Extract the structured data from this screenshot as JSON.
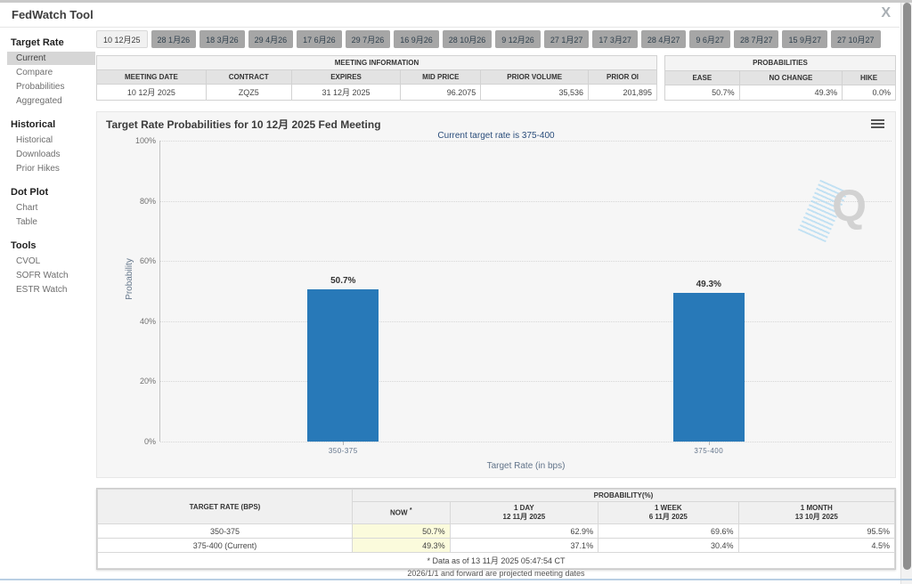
{
  "header": {
    "title": "FedWatch Tool",
    "close_glyph": "X"
  },
  "sidebar": {
    "sections": [
      {
        "title": "Target Rate",
        "items": [
          {
            "label": "Current",
            "selected": true
          },
          {
            "label": "Compare"
          },
          {
            "label": "Probabilities"
          },
          {
            "label": "Aggregated"
          }
        ]
      },
      {
        "title": "Historical",
        "items": [
          {
            "label": "Historical"
          },
          {
            "label": "Downloads"
          },
          {
            "label": "Prior Hikes"
          }
        ]
      },
      {
        "title": "Dot Plot",
        "items": [
          {
            "label": "Chart"
          },
          {
            "label": "Table"
          }
        ]
      },
      {
        "title": "Tools",
        "items": [
          {
            "label": "CVOL"
          },
          {
            "label": "SOFR Watch"
          },
          {
            "label": "ESTR Watch"
          }
        ]
      }
    ]
  },
  "tabs": [
    {
      "label": "10 12月25",
      "selected": true
    },
    {
      "label": "28 1月26"
    },
    {
      "label": "18 3月26"
    },
    {
      "label": "29 4月26"
    },
    {
      "label": "17 6月26"
    },
    {
      "label": "29 7月26"
    },
    {
      "label": "16 9月26"
    },
    {
      "label": "28 10月26"
    },
    {
      "label": "9 12月26"
    },
    {
      "label": "27 1月27"
    },
    {
      "label": "17 3月27"
    },
    {
      "label": "28 4月27"
    },
    {
      "label": "9 6月27"
    },
    {
      "label": "28 7月27"
    },
    {
      "label": "15 9月27"
    },
    {
      "label": "27 10月27"
    }
  ],
  "meeting_info": {
    "group_header": "MEETING INFORMATION",
    "columns": [
      "MEETING DATE",
      "CONTRACT",
      "EXPIRES",
      "MID PRICE",
      "PRIOR VOLUME",
      "PRIOR OI"
    ],
    "values": [
      "10 12月 2025",
      "ZQZ5",
      "31 12月 2025",
      "96.2075",
      "35,536",
      "201,895"
    ]
  },
  "probabilities_info": {
    "group_header": "PROBABILITIES",
    "columns": [
      "EASE",
      "NO CHANGE",
      "HIKE"
    ],
    "values": [
      "50.7%",
      "49.3%",
      "0.0%"
    ]
  },
  "chart_data": {
    "type": "bar",
    "title": "Target Rate Probabilities for 10 12月 2025 Fed Meeting",
    "subtitle": "Current target rate is 375-400",
    "categories": [
      "350-375",
      "375-400"
    ],
    "values": [
      50.7,
      49.3
    ],
    "value_labels": [
      "50.7%",
      "49.3%"
    ],
    "xlabel": "Target Rate (in bps)",
    "ylabel": "Probability",
    "ylim": [
      0,
      100
    ],
    "ytick_labels": [
      "100%",
      "80%",
      "60%",
      "40%",
      "20%",
      "0%"
    ],
    "grid": "dotted horizontal",
    "legend": "none",
    "bar_color": "#2879b8",
    "watermark": "Q"
  },
  "bottom_table": {
    "row_header": "TARGET RATE (BPS)",
    "group_header": "PROBABILITY(%)",
    "col_now": "NOW",
    "col_now_sup": "*",
    "col_day_1": "1 DAY",
    "col_day_2": "12 11月 2025",
    "col_week_1": "1 WEEK",
    "col_week_2": "6 11月 2025",
    "col_month_1": "1 MONTH",
    "col_month_2": "13 10月 2025",
    "rows": [
      {
        "label": "350-375",
        "now": "50.7%",
        "day": "62.9%",
        "week": "69.6%",
        "month": "95.5%"
      },
      {
        "label": "375-400 (Current)",
        "now": "49.3%",
        "day": "37.1%",
        "week": "30.4%",
        "month": "4.5%"
      }
    ],
    "footnote": "* Data as of 13 11月 2025 05:47:54 CT"
  },
  "footer_note": "2026/1/1 and forward are projected meeting dates"
}
